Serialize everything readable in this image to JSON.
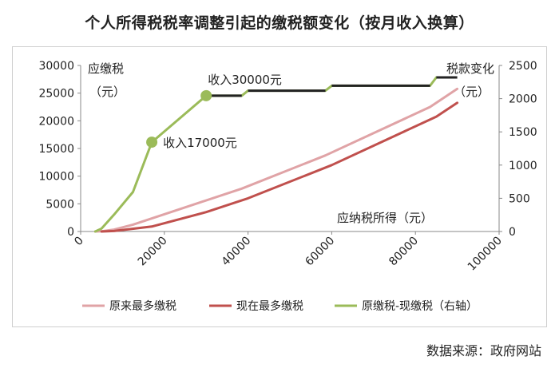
{
  "title": "个人所得税税率调整引起的缴税额变化（按月收入换算）",
  "source": "数据来源：政府网站",
  "chart_data": {
    "type": "line",
    "title": "个人所得税税率调整引起的缴税额变化（按月收入换算）",
    "xlabel": "应纳税所得（元）",
    "ylabel_left": [
      "应缴税",
      "（元）"
    ],
    "ylabel_right": [
      "税款变化",
      "（元）"
    ],
    "xlim": [
      0,
      100000
    ],
    "ylim_left": [
      0,
      30000
    ],
    "ylim_right": [
      0,
      2500
    ],
    "x_ticks": [
      0,
      20000,
      40000,
      60000,
      80000,
      100000
    ],
    "y_left_ticks": [
      0,
      5000,
      10000,
      15000,
      20000,
      25000,
      30000
    ],
    "y_right_ticks": [
      0,
      500,
      1000,
      1500,
      2000,
      2500
    ],
    "grid": false,
    "legend_position": "bottom",
    "series": [
      {
        "name": "原来最多缴税",
        "axis": "left",
        "color": "#e0a3a6",
        "x": [
          3500,
          5000,
          8000,
          12500,
          38500,
          58500,
          83500,
          90000
        ],
        "y": [
          0,
          45,
          345,
          1245,
          7745,
          13745,
          22495,
          25770
        ]
      },
      {
        "name": "现在最多缴税",
        "axis": "left",
        "color": "#c0504d",
        "x": [
          5000,
          8000,
          17000,
          30000,
          40000,
          60000,
          85000,
          90000
        ],
        "y": [
          0,
          90,
          900,
          3500,
          6000,
          12000,
          20750,
          23250
        ]
      },
      {
        "name": "原缴税-现缴税（右轴）",
        "axis": "right",
        "color": "#9bbb59",
        "x": [
          3500,
          5000,
          8000,
          12500,
          17000,
          30000,
          38500,
          40000,
          58500,
          60000,
          83500,
          85000
        ],
        "y": [
          0,
          45,
          255,
          595,
          1345,
          2045,
          2045,
          2120,
          2120,
          2195,
          2195,
          2320
        ]
      }
    ],
    "overlay_segments": {
      "color": "#222222",
      "x": [
        [
          30000,
          38500
        ],
        [
          40000,
          58500
        ],
        [
          60000,
          83500
        ],
        [
          85000,
          90000
        ]
      ],
      "y_right": [
        2045,
        2120,
        2195,
        2320
      ]
    },
    "annotations": [
      {
        "text": "收入17000元",
        "x": 17000,
        "y_right": 1345
      },
      {
        "text": "收入30000元",
        "x": 30000,
        "y_right": 2045
      }
    ]
  }
}
